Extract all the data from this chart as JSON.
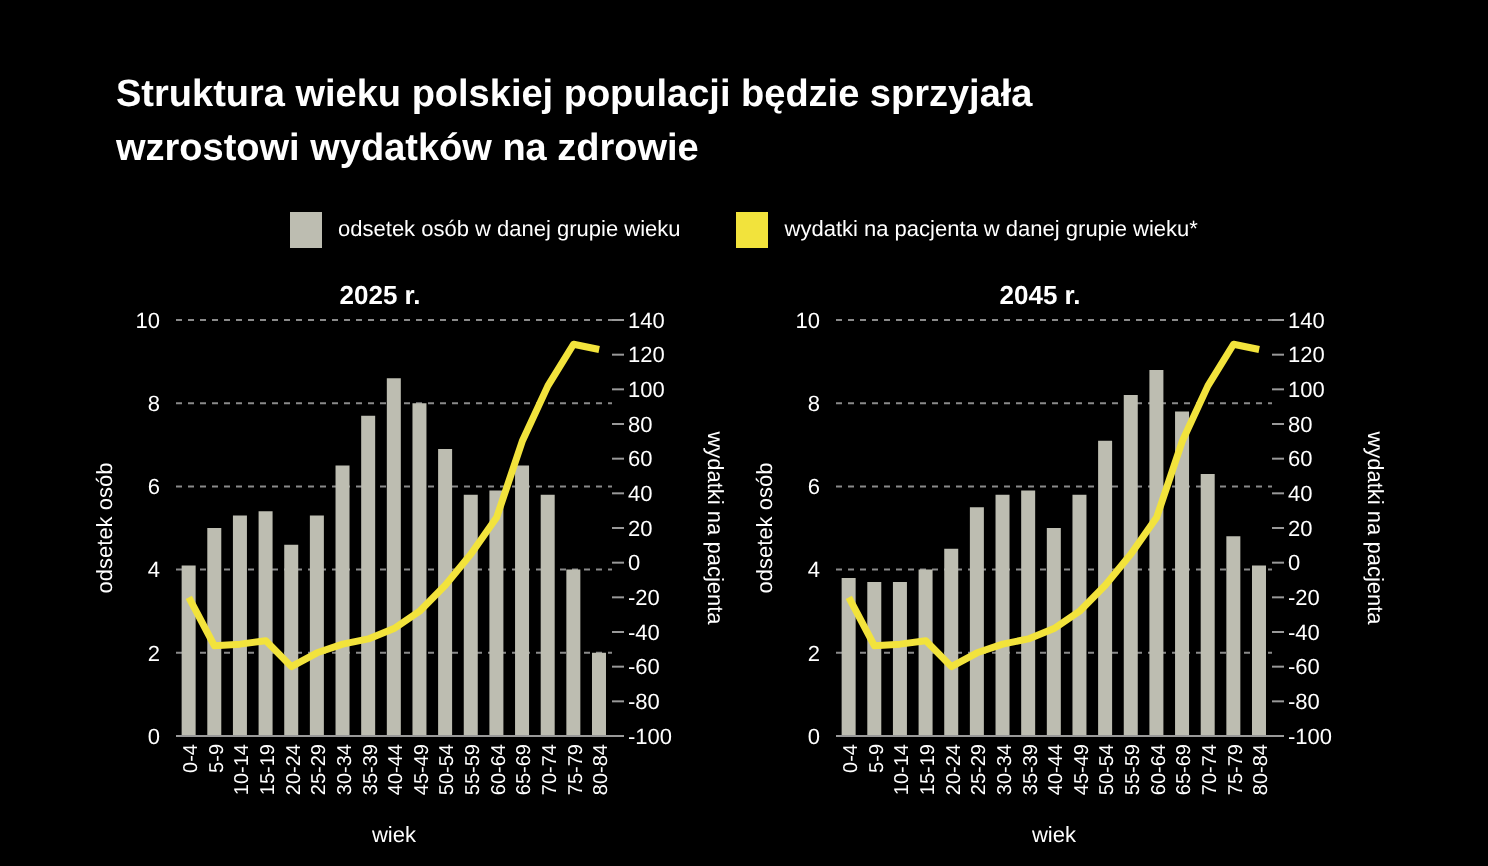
{
  "chart_data": [
    {
      "type": "bar",
      "title": "Struktura wieku polskiej populacji będzie sprzyjała wzrostowi wydatków na zdrowie",
      "subtitle": "2025 r.",
      "xlabel": "wiek",
      "ylabel": "odsetek osób",
      "y2label": "wydatki na pacjenta",
      "categories": [
        "0-4",
        "5-9",
        "10-14",
        "15-19",
        "20-24",
        "25-29",
        "30-34",
        "35-39",
        "40-44",
        "45-49",
        "50-54",
        "55-59",
        "60-64",
        "65-69",
        "70-74",
        "75-79",
        "80-84"
      ],
      "series": [
        {
          "name": "odsetek osób w danej grupie wieku",
          "color": "#bdbdb1",
          "values": [
            4.1,
            5.0,
            5.3,
            5.4,
            4.6,
            5.3,
            6.5,
            7.7,
            8.6,
            8.0,
            6.9,
            5.8,
            5.9,
            6.5,
            5.8,
            4.0,
            2.0
          ]
        },
        {
          "name": "wydatki na pacjenta w danej grupie wieku*",
          "type": "line",
          "axis": "y2",
          "color": "#f2e33c",
          "values": [
            -20,
            -48,
            -47,
            -45,
            -60,
            -52,
            -47,
            -44,
            -38,
            -28,
            -13,
            5,
            26,
            70,
            102,
            126,
            123
          ]
        }
      ],
      "ylim": [
        0,
        10
      ],
      "yticks": [
        0,
        2,
        4,
        6,
        8,
        10
      ],
      "y2lim": [
        -100,
        140
      ],
      "y2ticks": [
        -100,
        -80,
        -60,
        -40,
        -20,
        0,
        20,
        40,
        60,
        80,
        100,
        120,
        140
      ],
      "grid": "y",
      "legend": "top",
      "marker": "none",
      "line_style": "solid"
    },
    {
      "type": "bar",
      "subtitle": "2045 r.",
      "xlabel": "wiek",
      "ylabel": "odsetek osób",
      "y2label": "wydatki na pacjenta",
      "categories": [
        "0-4",
        "5-9",
        "10-14",
        "15-19",
        "20-24",
        "25-29",
        "30-34",
        "35-39",
        "40-44",
        "45-49",
        "50-54",
        "55-59",
        "60-64",
        "65-69",
        "70-74",
        "75-79",
        "80-84"
      ],
      "series": [
        {
          "color": "#bdbdb1",
          "values": [
            3.8,
            3.7,
            3.7,
            4.0,
            4.5,
            5.5,
            5.8,
            5.9,
            5.0,
            5.8,
            7.1,
            8.2,
            8.8,
            7.8,
            6.3,
            4.8,
            4.1
          ]
        },
        {
          "type": "line",
          "axis": "y2",
          "color": "#f2e33c",
          "values": [
            -20,
            -48,
            -47,
            -45,
            -60,
            -52,
            -47,
            -44,
            -38,
            -28,
            -13,
            5,
            26,
            70,
            102,
            126,
            123
          ]
        }
      ],
      "ylim": [
        0,
        10
      ],
      "yticks": [
        0,
        2,
        4,
        6,
        8,
        10
      ],
      "y2lim": [
        -100,
        140
      ],
      "y2ticks": [
        -100,
        -80,
        -60,
        -40,
        -20,
        0,
        20,
        40,
        60,
        80,
        100,
        120,
        140
      ],
      "grid": "y",
      "marker": "none",
      "line_style": "solid"
    }
  ]
}
